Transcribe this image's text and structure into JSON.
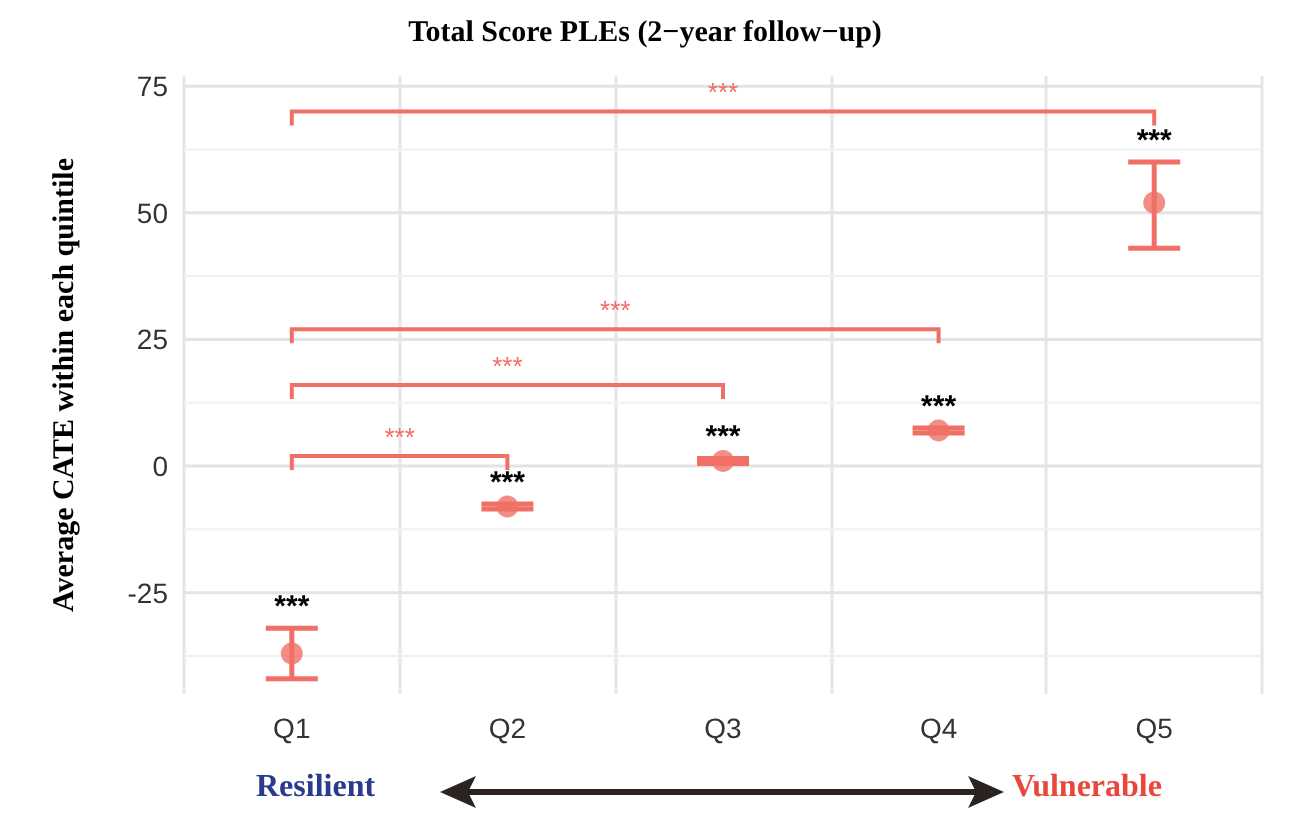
{
  "chart_data": {
    "type": "scatter",
    "title": "Total Score PLEs (2−year follow−up)",
    "ylabel": "Average CATE within each quintile",
    "categories": [
      "Q1",
      "Q2",
      "Q3",
      "Q4",
      "Q5"
    ],
    "series": [
      {
        "color": "#f07067",
        "values": [
          -37,
          -8,
          1,
          7,
          52
        ],
        "errors": [
          [
            -42,
            -32
          ],
          [
            -8.5,
            -7.5
          ],
          [
            0.5,
            1.5
          ],
          [
            6.5,
            7.5
          ],
          [
            43,
            60
          ]
        ],
        "value_labels": [
          "***",
          "***",
          "***",
          "***",
          "***"
        ]
      }
    ],
    "marker": "circle",
    "ylim": [
      -45,
      77
    ],
    "yticks": [
      -25,
      0,
      25,
      50,
      75
    ],
    "grid": true,
    "annotations": [
      "***",
      "***",
      "***",
      "***",
      "Resilient",
      "Vulnerable"
    ]
  }
}
